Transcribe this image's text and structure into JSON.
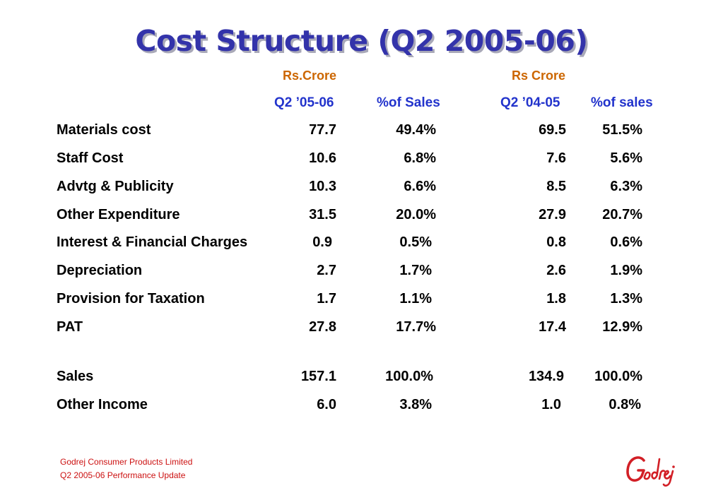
{
  "title": "Cost Structure (Q2 2005-06)",
  "units": {
    "current": "Rs.Crore",
    "previous": "Rs Crore"
  },
  "columns": {
    "current_period": "Q2 ’05-06",
    "current_pct": "%of Sales",
    "previous_period": "Q2 ’04-05",
    "previous_pct": "%of sales"
  },
  "rows": [
    {
      "label": "Materials cost",
      "v1": "77.7",
      "p1": "49.4%",
      "v2": "69.5",
      "p2": "51.5%"
    },
    {
      "label": "Staff Cost",
      "v1": "10.6",
      "p1": "6.8%",
      "v2": "7.6",
      "p2": "5.6%"
    },
    {
      "label": "Advtg & Publicity",
      "v1": "10.3",
      "p1": "6.6%",
      "v2": "8.5",
      "p2": "6.3%"
    },
    {
      "label": "Other Expenditure",
      "v1": "31.5",
      "p1": "20.0%",
      "v2": "27.9",
      "p2": "20.7%"
    },
    {
      "label": "Interest & Financial Charges",
      "v1": "0.9",
      "p1": "0.5%",
      "v2": "0.8",
      "p2": "0.6%"
    },
    {
      "label": "Depreciation",
      "v1": "2.7",
      "p1": "1.7%",
      "v2": "2.6",
      "p2": "1.9%"
    },
    {
      "label": "Provision for Taxation",
      "v1": "1.7",
      "p1": "1.1%",
      "v2": "1.8",
      "p2": "1.3%"
    },
    {
      "label": "PAT",
      "v1": "27.8",
      "p1": "17.7%",
      "v2": "17.4",
      "p2": "12.9%"
    },
    {
      "label": "Sales",
      "v1": "157.1",
      "p1": "100.0%",
      "v2": "134.9",
      "p2": "100.0%"
    },
    {
      "label": "Other Income",
      "v1": "6.0",
      "p1": "3.8%",
      "v2": "1.0",
      "p2": "0.8%"
    }
  ],
  "footer": {
    "company": "Godrej Consumer Products Limited",
    "subtitle": "Q2 2005-06 Performance Update"
  },
  "logo": {
    "text": "Godrej",
    "color": "#d21f26"
  }
}
